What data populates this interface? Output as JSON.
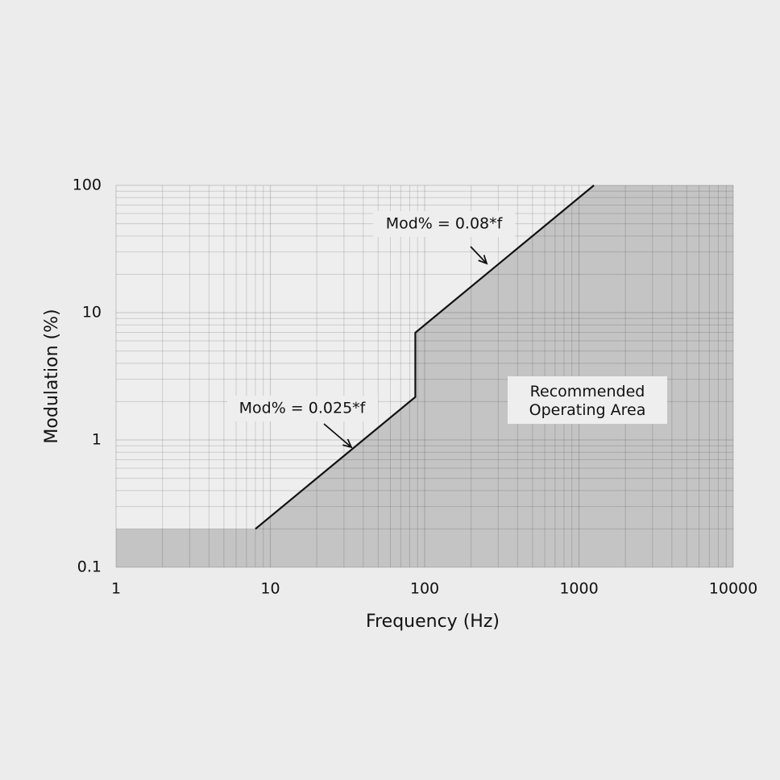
{
  "chart_data": {
    "type": "line",
    "x_label": "Frequency (Hz)",
    "y_label": "Modulation (%)",
    "xlim": [
      1,
      10000
    ],
    "ylim": [
      0.1,
      100
    ],
    "xticks": [
      1,
      10,
      100,
      1000,
      10000
    ],
    "yticks": [
      0.1,
      1,
      10,
      100
    ],
    "xscale": "log",
    "yscale": "log",
    "grid": true,
    "series": [
      {
        "kind": "area",
        "color": "#c4c4c4",
        "x": [
          1,
          8,
          87,
          87,
          1250,
          10000
        ],
        "values": [
          0.2,
          0.2,
          2.175,
          6.96,
          100,
          100
        ]
      },
      {
        "kind": "line",
        "color": "#111111",
        "x": [
          8,
          87,
          87,
          1250
        ],
        "values": [
          0.2,
          2.175,
          6.96,
          100
        ]
      }
    ],
    "annotations": [
      "Mod% = 0.08*f",
      "Mod% = 0.025*f",
      "Recommended Operating Area"
    ]
  }
}
